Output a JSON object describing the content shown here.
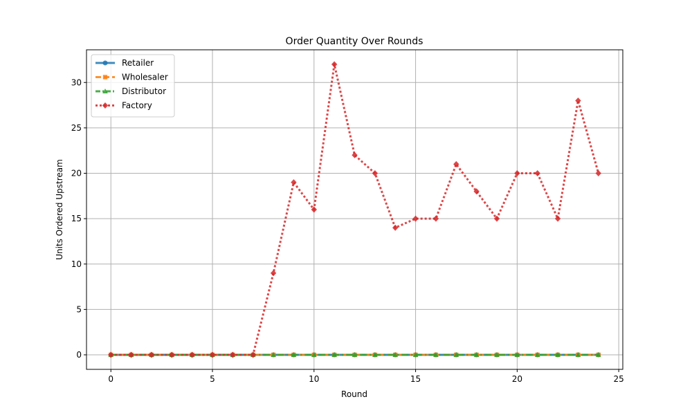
{
  "chart_data": {
    "type": "line",
    "title": "Order Quantity Over Rounds",
    "xlabel": "Round",
    "ylabel": "Units Ordered Upstream",
    "xlim": [
      -1.2,
      25.2
    ],
    "ylim": [
      -1.6,
      33.6
    ],
    "xticks": [
      0,
      5,
      10,
      15,
      20,
      25
    ],
    "yticks": [
      0,
      5,
      10,
      15,
      20,
      25,
      30
    ],
    "grid": true,
    "legend_position": "upper-left",
    "x": [
      0,
      1,
      2,
      3,
      4,
      5,
      6,
      7,
      8,
      9,
      10,
      11,
      12,
      13,
      14,
      15,
      16,
      17,
      18,
      19,
      20,
      21,
      22,
      23,
      24
    ],
    "series": [
      {
        "name": "Retailer",
        "color": "#1f77b4",
        "marker": "circle",
        "linestyle": "solid",
        "values": [
          0,
          0,
          0,
          0,
          0,
          0,
          0,
          0,
          0,
          0,
          0,
          0,
          0,
          0,
          0,
          0,
          0,
          0,
          0,
          0,
          0,
          0,
          0,
          0,
          0
        ]
      },
      {
        "name": "Wholesaler",
        "color": "#ff7f0e",
        "marker": "square",
        "linestyle": "dashed",
        "values": [
          0,
          0,
          0,
          0,
          0,
          0,
          0,
          0,
          0,
          0,
          0,
          0,
          0,
          0,
          0,
          0,
          0,
          0,
          0,
          0,
          0,
          0,
          0,
          0,
          0
        ]
      },
      {
        "name": "Distributor",
        "color": "#2ca02c",
        "marker": "triangle",
        "linestyle": "dashdot",
        "values": [
          0,
          0,
          0,
          0,
          0,
          0,
          0,
          0,
          0,
          0,
          0,
          0,
          0,
          0,
          0,
          0,
          0,
          0,
          0,
          0,
          0,
          0,
          0,
          0,
          0
        ]
      },
      {
        "name": "Factory",
        "color": "#d62728",
        "marker": "diamond",
        "linestyle": "dotted",
        "values": [
          0,
          0,
          0,
          0,
          0,
          0,
          0,
          0,
          9,
          19,
          16,
          32,
          22,
          20,
          14,
          15,
          15,
          21,
          18,
          15,
          20,
          20,
          15,
          28,
          20
        ]
      }
    ]
  }
}
